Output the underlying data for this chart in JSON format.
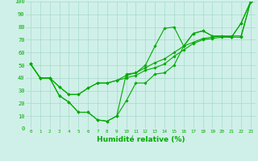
{
  "xlabel": "Humidité relative (%)",
  "background_color": "#cff0e8",
  "grid_color": "#a8d8cc",
  "line_color": "#00aa00",
  "xlim": [
    -0.5,
    23.5
  ],
  "ylim": [
    0,
    100
  ],
  "xticks": [
    0,
    1,
    2,
    3,
    4,
    5,
    6,
    7,
    8,
    9,
    10,
    11,
    12,
    13,
    14,
    15,
    16,
    17,
    18,
    19,
    20,
    21,
    22,
    23
  ],
  "yticks": [
    0,
    10,
    20,
    30,
    40,
    50,
    60,
    70,
    80,
    90,
    100
  ],
  "series": [
    [
      51,
      40,
      40,
      26,
      21,
      13,
      13,
      7,
      6,
      10,
      22,
      36,
      36,
      43,
      44,
      50,
      65,
      75,
      77,
      73,
      73,
      72,
      83,
      100
    ],
    [
      51,
      40,
      40,
      33,
      27,
      27,
      32,
      36,
      36,
      38,
      40,
      42,
      46,
      48,
      51,
      57,
      62,
      67,
      70,
      71,
      72,
      72,
      72,
      100
    ],
    [
      51,
      40,
      40,
      26,
      21,
      13,
      13,
      7,
      6,
      10,
      43,
      44,
      50,
      65,
      79,
      80,
      65,
      75,
      77,
      73,
      73,
      72,
      83,
      100
    ],
    [
      51,
      40,
      40,
      33,
      27,
      27,
      32,
      36,
      36,
      38,
      42,
      44,
      48,
      52,
      55,
      60,
      65,
      68,
      71,
      72,
      73,
      73,
      73,
      100
    ]
  ]
}
